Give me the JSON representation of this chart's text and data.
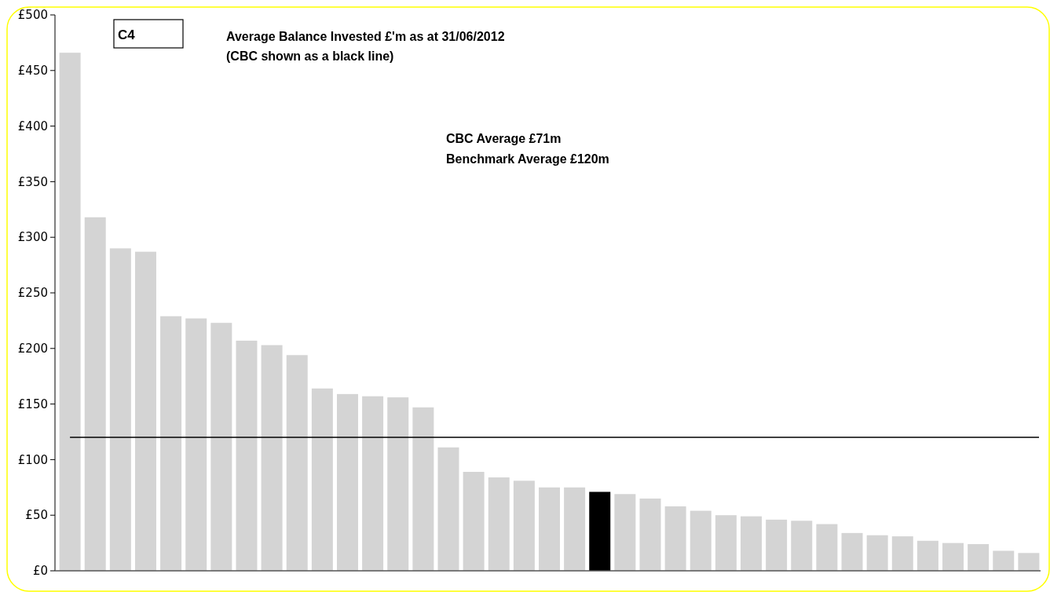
{
  "chart_data": {
    "type": "bar",
    "title": "Average Balance Invested £'m as at 31/06/2012",
    "subtitle": "(CBC shown as a black line)",
    "annotations": [
      "C4",
      "CBC Average £71m",
      "Benchmark Average £120m"
    ],
    "categories": [
      null,
      null,
      null,
      null,
      null,
      null,
      null,
      null,
      null,
      null,
      null,
      null,
      null,
      null,
      null,
      null,
      null,
      null,
      null,
      null,
      null,
      null,
      null,
      null,
      null,
      null,
      null,
      null,
      null,
      null,
      null,
      null,
      null,
      null,
      null,
      null,
      null,
      null,
      null
    ],
    "values": [
      466,
      318,
      290,
      287,
      229,
      227,
      223,
      207,
      203,
      194,
      164,
      159,
      157,
      156,
      147,
      111,
      89,
      84,
      81,
      75,
      75,
      71,
      69,
      65,
      58,
      54,
      50,
      49,
      46,
      45,
      42,
      34,
      32,
      31,
      27,
      25,
      24,
      18,
      16
    ],
    "colors": [
      "#d4d4d4",
      "#d4d4d4",
      "#d4d4d4",
      "#d4d4d4",
      "#d4d4d4",
      "#d4d4d4",
      "#d4d4d4",
      "#d4d4d4",
      "#d4d4d4",
      "#d4d4d4",
      "#d4d4d4",
      "#d4d4d4",
      "#d4d4d4",
      "#d4d4d4",
      "#d4d4d4",
      "#d4d4d4",
      "#d4d4d4",
      "#d4d4d4",
      "#d4d4d4",
      "#d4d4d4",
      "#d4d4d4",
      "#000000",
      "#d4d4d4",
      "#d4d4d4",
      "#d4d4d4",
      "#d4d4d4",
      "#d4d4d4",
      "#d4d4d4",
      "#d4d4d4",
      "#d4d4d4",
      "#d4d4d4",
      "#d4d4d4",
      "#d4d4d4",
      "#d4d4d4",
      "#d4d4d4",
      "#d4d4d4",
      "#d4d4d4",
      "#d4d4d4",
      "#d4d4d4"
    ],
    "ylim": [
      0,
      500
    ],
    "yticks": [
      {
        "value": 0,
        "label": "£0"
      },
      {
        "value": 50,
        "label": "£50"
      },
      {
        "value": 100,
        "label": "£100"
      },
      {
        "value": 150,
        "label": "£150"
      },
      {
        "value": 200,
        "label": "£200"
      },
      {
        "value": 250,
        "label": "£250"
      },
      {
        "value": 300,
        "label": "£300"
      },
      {
        "value": 350,
        "label": "£350"
      },
      {
        "value": 400,
        "label": "£400"
      },
      {
        "value": 450,
        "label": "£450"
      },
      {
        "value": 500,
        "label": "£500"
      }
    ],
    "ref_lines": [
      {
        "axis": "y",
        "value": 120,
        "color": "#000000"
      }
    ],
    "tick_labels": "y"
  }
}
